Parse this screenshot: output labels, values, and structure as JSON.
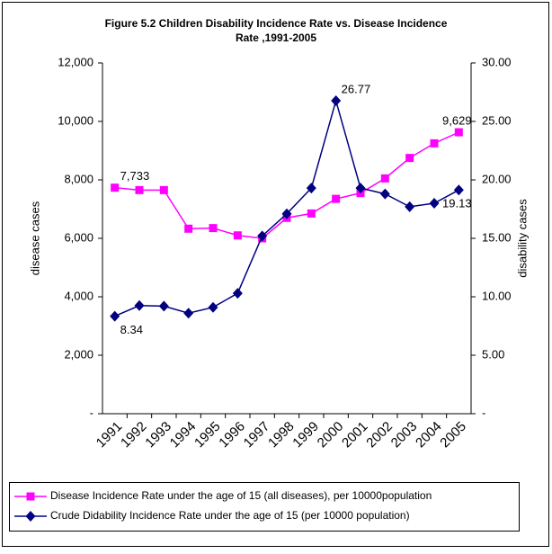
{
  "chart_data": {
    "type": "line",
    "title": [
      "Figure 5.2 Children Disability  Incidence  Rate vs. Disease Incidence",
      "Rate ,1991-2005"
    ],
    "ylabel": "disease cases",
    "y2label": "disability cases",
    "categories": [
      "1991",
      "1992",
      "1993",
      "1994",
      "1995",
      "1996",
      "1997",
      "1998",
      "1999",
      "2000",
      "2001",
      "2002",
      "2003",
      "2004",
      "2005"
    ],
    "series": [
      {
        "name": "Disease Incidence  Rate under the age of 15 (all diseases), per 10000population",
        "color": "#ff00ff",
        "marker": "square",
        "axis": "y",
        "values": [
          7733,
          7650,
          7650,
          6330,
          6350,
          6100,
          6000,
          6700,
          6850,
          7350,
          7550,
          8050,
          8750,
          9250,
          9629
        ],
        "value_labels": [
          "7,733",
          null,
          null,
          null,
          null,
          null,
          null,
          null,
          null,
          null,
          null,
          null,
          null,
          null,
          "9,629"
        ]
      },
      {
        "name": "Crude Didability Incidence Rate under the age of 15 (per 10000 population)",
        "color": "#000080",
        "marker": "diamond",
        "axis": "y2",
        "values": [
          8.34,
          9.25,
          9.2,
          8.6,
          9.1,
          10.3,
          15.2,
          17.1,
          19.3,
          26.77,
          19.3,
          18.8,
          17.7,
          18.0,
          19.13
        ],
        "value_labels": [
          "8.34",
          null,
          null,
          null,
          null,
          null,
          null,
          null,
          null,
          "26.77",
          null,
          null,
          null,
          null,
          "19.13"
        ]
      }
    ],
    "ylim": [
      0,
      12000
    ],
    "yticks": [
      {
        "value": 0,
        "label": "-"
      },
      {
        "value": 2000,
        "label": "2,000"
      },
      {
        "value": 4000,
        "label": "4,000"
      },
      {
        "value": 6000,
        "label": "6,000"
      },
      {
        "value": 8000,
        "label": "8,000"
      },
      {
        "value": 10000,
        "label": "10,000"
      },
      {
        "value": 12000,
        "label": "12,000"
      }
    ],
    "y2lim": [
      0,
      30
    ],
    "y2ticks": [
      {
        "value": 0,
        "label": "-"
      },
      {
        "value": 5,
        "label": "5.00"
      },
      {
        "value": 10,
        "label": "10.00"
      },
      {
        "value": 15,
        "label": "15.00"
      },
      {
        "value": 20,
        "label": "20.00"
      },
      {
        "value": 25,
        "label": "25.00"
      },
      {
        "value": 30,
        "label": "30.00"
      }
    ],
    "grid": false,
    "legend": "bottom"
  }
}
